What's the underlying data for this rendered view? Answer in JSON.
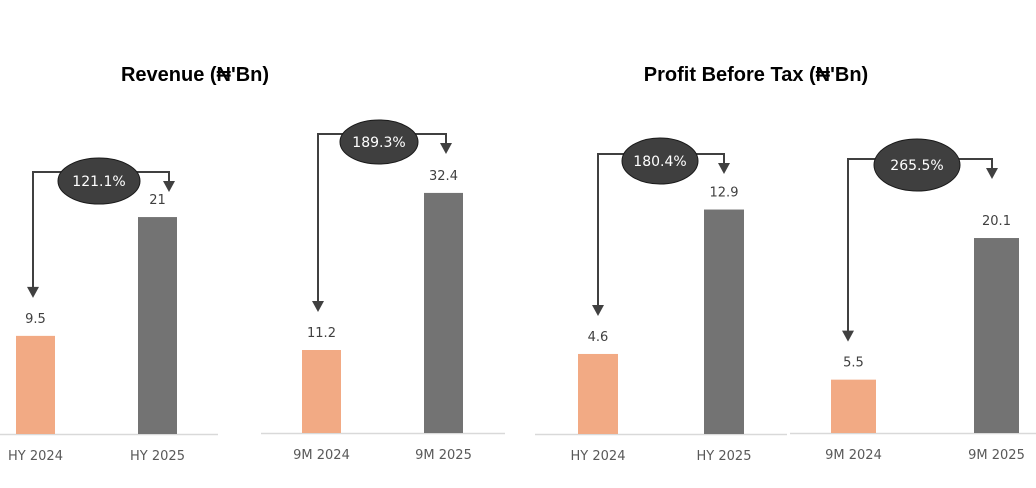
{
  "titles": [
    "Revenue (₦'Bn)",
    "Profit Before Tax (₦'Bn)"
  ],
  "colors": {
    "prior": "#F2AA84",
    "current": "#737373",
    "bubble": "#3F3F3F",
    "arrow": "#404040",
    "axis": "#D9D9D9"
  },
  "chart_data": [
    {
      "type": "bar",
      "group": "Revenue (₦'Bn)",
      "categories": [
        "HY 2024",
        "HY 2025"
      ],
      "values": [
        9.5,
        21
      ],
      "value_labels": [
        "9.5",
        "21"
      ],
      "growth_label": "121.1%"
    },
    {
      "type": "bar",
      "group": "Revenue (₦'Bn)",
      "categories": [
        "9M 2024",
        "9M 2025"
      ],
      "values": [
        11.2,
        32.4
      ],
      "value_labels": [
        "11.2",
        "32.4"
      ],
      "growth_label": "189.3%"
    },
    {
      "type": "bar",
      "group": "Profit Before Tax (₦'Bn)",
      "categories": [
        "HY 2024",
        "HY 2025"
      ],
      "values": [
        4.6,
        12.9
      ],
      "value_labels": [
        "4.6",
        "12.9"
      ],
      "growth_label": "180.4%"
    },
    {
      "type": "bar",
      "group": "Profit Before Tax (₦'Bn)",
      "categories": [
        "9M 2024",
        "9M 2025"
      ],
      "values": [
        5.5,
        20.1
      ],
      "value_labels": [
        "5.5",
        "20.1"
      ],
      "growth_label": "265.5%"
    }
  ]
}
